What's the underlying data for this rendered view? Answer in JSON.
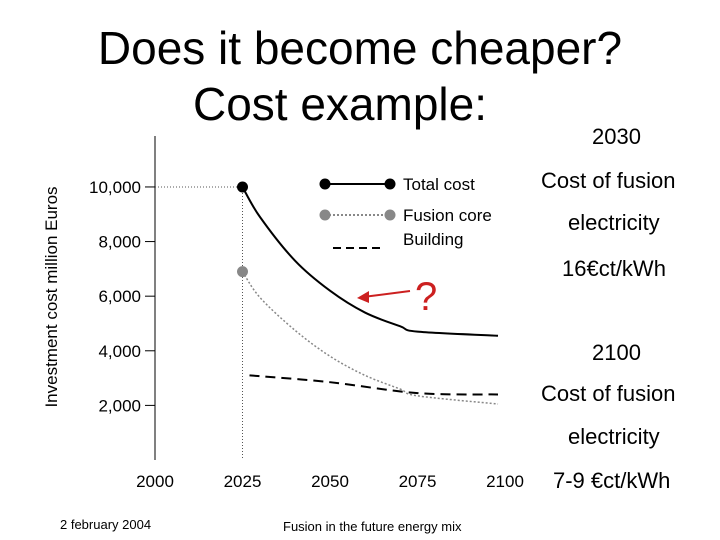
{
  "slide": {
    "title_line1": "Does it become cheaper?",
    "title_line2": "Cost example:",
    "footer_date": "2 february 2004",
    "footer_center": "Fusion in the future energy mix",
    "question_mark": "?"
  },
  "side_notes": {
    "year_2030": "2030",
    "label_2030_a": "Cost of fusion",
    "label_2030_b": "electricity",
    "value_2030": "16€ct/kWh",
    "year_2100": "2100",
    "label_2100_a": "Cost of fusion",
    "label_2100_b": "electricity",
    "value_2100": "7-9 €ct/kWh"
  },
  "chart_data": {
    "type": "line",
    "ylabel": "Investment cost million Euros",
    "xlabel": "",
    "x_ticks": [
      "2000",
      "2025",
      "2050",
      "2075",
      "2100"
    ],
    "y_ticks": [
      "2,000",
      "4,000",
      "6,000",
      "8,000",
      "10,000"
    ],
    "xlim": [
      2000,
      2100
    ],
    "ylim": [
      0,
      11500
    ],
    "legend_position": "top-right",
    "series": [
      {
        "name": "Total cost",
        "style": "solid",
        "color": "#000000",
        "x": [
          2025,
          2030,
          2040,
          2050,
          2060,
          2070,
          2075,
          2098
        ],
        "y": [
          10000,
          8900,
          7300,
          6200,
          5400,
          4900,
          4700,
          4550
        ]
      },
      {
        "name": "Fusion core",
        "style": "dotted",
        "color": "#888888",
        "x": [
          2025,
          2030,
          2040,
          2050,
          2060,
          2070,
          2075,
          2098
        ],
        "y": [
          6900,
          5950,
          4750,
          3800,
          3100,
          2600,
          2350,
          2050
        ]
      },
      {
        "name": "Building",
        "style": "dashed",
        "color": "#000000",
        "x": [
          2027,
          2050,
          2075,
          2098
        ],
        "y": [
          3100,
          2850,
          2450,
          2400
        ]
      }
    ],
    "markers": [
      {
        "series": "Total cost",
        "x": 2025,
        "y": 10000,
        "color": "#000000"
      },
      {
        "series": "Fusion core",
        "x": 2025,
        "y": 6900,
        "color": "#888888"
      }
    ],
    "reference_line": {
      "x": 2025,
      "style": "dotted"
    }
  }
}
